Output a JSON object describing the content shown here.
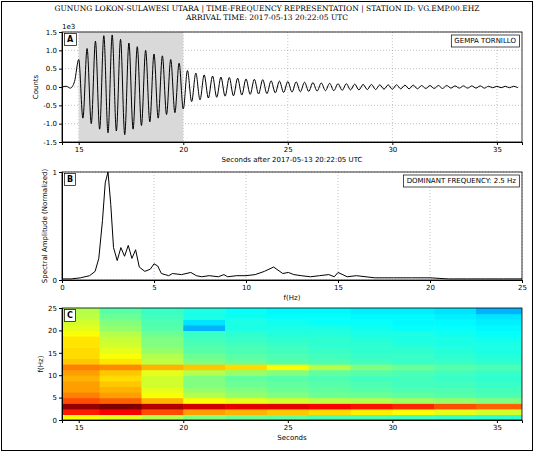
{
  "title": "GUNUNG LOKON-SULAWESI UTARA | TIME-FREQUENCY REPRESENTATION | STATION ID: VG.EMP.00.EHZ",
  "subtitle": "ARRIVAL TIME: 2017-05-13 20:22:05 UTC",
  "chart_data": [
    {
      "type": "line",
      "panel": "A",
      "annotation": "GEMPA TORNILLO",
      "x_label": "Seconds after 2017-05-13 20:22:05 UTC",
      "y_label": "Counts",
      "y_scale_label": "1e3",
      "x": [
        14.2,
        14.4,
        14.6,
        14.8,
        15.0,
        15.2,
        15.4,
        15.6,
        15.8,
        16.0,
        16.2,
        16.4,
        16.6,
        16.8,
        17.0,
        17.2,
        17.4,
        17.6,
        17.8,
        18.0,
        18.2,
        18.4,
        18.6,
        18.8,
        19.0,
        19.2,
        19.4,
        19.6,
        19.8,
        20.0,
        20.2,
        20.4,
        20.6,
        20.8,
        21.0,
        21.2,
        21.4,
        21.6,
        21.8,
        22.0,
        22.2,
        22.4,
        22.6,
        22.8,
        23.0,
        23.2,
        23.4,
        23.6,
        23.8,
        24.0,
        24.2,
        24.4,
        24.6,
        24.8,
        25.0,
        25.2,
        25.4,
        25.6,
        25.8,
        26.0,
        26.2,
        26.4,
        26.6,
        26.8,
        27.0,
        27.2,
        27.4,
        27.6,
        27.8,
        28.0,
        28.2,
        28.4,
        28.6,
        28.8,
        29.0,
        29.2,
        29.4,
        29.6,
        29.8,
        30.0,
        30.2,
        30.4,
        30.6,
        30.8,
        31.0,
        31.2,
        31.4,
        31.6,
        31.8,
        32.0,
        32.2,
        32.4,
        32.6,
        32.8,
        33.0,
        33.2,
        33.4,
        33.6,
        33.8,
        34.0,
        34.2,
        34.4,
        34.6,
        34.8,
        35.0,
        35.2,
        35.4,
        35.6,
        35.8,
        36.0
      ],
      "series": [
        {
          "color": "#000000",
          "values": [
            0,
            0.02,
            -0.03,
            0.15,
            0.75,
            -0.85,
            1.05,
            -1.0,
            1.25,
            -1.15,
            1.4,
            -1.25,
            1.42,
            -1.2,
            1.3,
            -1.3,
            1.2,
            -1.15,
            1.1,
            -1.05,
            1.0,
            -0.95,
            0.9,
            -0.85,
            0.85,
            -0.75,
            0.75,
            -0.7,
            0.65,
            -0.6,
            0.45,
            -0.4,
            0.38,
            -0.35,
            0.33,
            -0.3,
            0.3,
            -0.28,
            0.27,
            -0.25,
            0.26,
            -0.24,
            0.24,
            -0.22,
            0.22,
            -0.2,
            0.21,
            -0.19,
            0.2,
            -0.18,
            0.17,
            -0.16,
            0.16,
            -0.15,
            0.15,
            -0.14,
            0.14,
            -0.13,
            0.13,
            -0.12,
            0.12,
            -0.11,
            0.11,
            -0.1,
            0.1,
            -0.1,
            0.09,
            -0.09,
            0.09,
            -0.08,
            0.08,
            -0.08,
            0.07,
            -0.07,
            0.07,
            -0.07,
            0.06,
            -0.06,
            0.06,
            -0.06,
            0.06,
            -0.05,
            0.05,
            -0.05,
            0.05,
            -0.05,
            0.04,
            -0.04,
            0.04,
            -0.04,
            0.04,
            -0.04,
            0.04,
            -0.03,
            0.03,
            -0.03,
            0.03,
            -0.03,
            0.03,
            -0.03,
            0.03,
            -0.03,
            0.02,
            -0.02,
            0.02,
            -0.02,
            0.02,
            -0.02,
            0.02,
            -0.02
          ]
        }
      ],
      "shaded_span": [
        15,
        20
      ],
      "xlim": [
        14.2,
        36.2
      ],
      "ylim": [
        -1.5,
        1.5
      ],
      "xticks": [
        15,
        20,
        25,
        30,
        35
      ],
      "yticks": [
        -1.5,
        {
          "value": -1.0,
          "label": "-1.0"
        },
        -0.5,
        {
          "value": 0,
          "label": "0.0"
        },
        0.5,
        {
          "value": 1.0,
          "label": "1.0"
        },
        1.5
      ],
      "grid": true
    },
    {
      "type": "line",
      "panel": "B",
      "annotation": "DOMINANT FREQUENCY: 2.5 Hz",
      "x_label": "f(Hz)",
      "y_label": "Spectral Amplitude (Normalized)",
      "x": [
        0,
        0.5,
        1.0,
        1.5,
        1.8,
        2.0,
        2.2,
        2.35,
        2.5,
        2.65,
        2.8,
        3.0,
        3.2,
        3.4,
        3.6,
        3.8,
        4.0,
        4.2,
        4.5,
        4.8,
        5.0,
        5.2,
        5.4,
        5.6,
        5.8,
        6.0,
        6.5,
        7.0,
        7.3,
        7.6,
        8.0,
        8.5,
        8.8,
        9.0,
        9.5,
        10.0,
        10.5,
        11.0,
        11.5,
        12.0,
        12.3,
        12.6,
        13.0,
        13.5,
        14.0,
        14.5,
        14.8,
        15.0,
        15.5,
        16.0,
        17.0,
        18.0,
        19.0,
        20.0,
        21.0,
        22.0,
        23.0,
        24.0,
        25.0
      ],
      "series": [
        {
          "color": "#000000",
          "values": [
            0.01,
            0.01,
            0.02,
            0.04,
            0.08,
            0.2,
            0.55,
            0.9,
            1.0,
            0.7,
            0.3,
            0.18,
            0.3,
            0.22,
            0.32,
            0.2,
            0.28,
            0.12,
            0.08,
            0.1,
            0.15,
            0.13,
            0.06,
            0.05,
            0.04,
            0.06,
            0.05,
            0.07,
            0.04,
            0.03,
            0.04,
            0.03,
            0.05,
            0.03,
            0.04,
            0.04,
            0.05,
            0.08,
            0.12,
            0.06,
            0.07,
            0.05,
            0.04,
            0.03,
            0.04,
            0.05,
            0.03,
            0.07,
            0.03,
            0.04,
            0.02,
            0.02,
            0.02,
            0.02,
            0.01,
            0.01,
            0.01,
            0.01,
            0.01
          ]
        }
      ],
      "xlim": [
        0,
        25
      ],
      "ylim": [
        0,
        1
      ],
      "xticks": [
        0,
        5,
        10,
        15,
        20,
        25
      ],
      "yticks": [
        0,
        1
      ],
      "grid": true
    },
    {
      "type": "heatmap",
      "panel": "C",
      "x_label": "Seconds",
      "y_label": "f(Hz)",
      "x_edges": [
        14.2,
        16,
        18,
        20,
        22,
        24,
        26,
        28,
        30,
        32,
        34,
        36.2
      ],
      "y_edges": [
        0,
        1.25,
        2.5,
        3.75,
        5,
        6.25,
        7.5,
        8.75,
        10,
        11.25,
        12.5,
        13.75,
        15,
        16.25,
        17.5,
        18.75,
        20,
        21.25,
        22.5,
        23.75,
        25
      ],
      "cells": [
        [
          0.62,
          0.6,
          0.55,
          0.5,
          0.48,
          0.47,
          0.45,
          0.45,
          0.44,
          0.43,
          0.42
        ],
        [
          0.85,
          0.88,
          0.8,
          0.72,
          0.7,
          0.68,
          0.66,
          0.64,
          0.62,
          0.6,
          0.58
        ],
        [
          0.98,
          1.0,
          0.95,
          0.92,
          0.9,
          0.9,
          0.88,
          0.86,
          0.84,
          0.8,
          0.78
        ],
        [
          0.8,
          0.78,
          0.7,
          0.62,
          0.6,
          0.58,
          0.56,
          0.55,
          0.53,
          0.52,
          0.5
        ],
        [
          0.75,
          0.72,
          0.62,
          0.55,
          0.52,
          0.5,
          0.48,
          0.48,
          0.47,
          0.46,
          0.45
        ],
        [
          0.72,
          0.7,
          0.6,
          0.52,
          0.5,
          0.48,
          0.47,
          0.46,
          0.45,
          0.45,
          0.44
        ],
        [
          0.72,
          0.68,
          0.58,
          0.5,
          0.48,
          0.47,
          0.46,
          0.45,
          0.44,
          0.44,
          0.43
        ],
        [
          0.7,
          0.66,
          0.58,
          0.5,
          0.47,
          0.46,
          0.45,
          0.44,
          0.44,
          0.43,
          0.42
        ],
        [
          0.72,
          0.68,
          0.6,
          0.55,
          0.52,
          0.5,
          0.47,
          0.46,
          0.45,
          0.44,
          0.43
        ],
        [
          0.75,
          0.74,
          0.7,
          0.68,
          0.66,
          0.62,
          0.55,
          0.5,
          0.48,
          0.46,
          0.45
        ],
        [
          0.68,
          0.65,
          0.56,
          0.5,
          0.48,
          0.46,
          0.45,
          0.44,
          0.43,
          0.43,
          0.42
        ],
        [
          0.66,
          0.62,
          0.55,
          0.48,
          0.46,
          0.45,
          0.44,
          0.43,
          0.43,
          0.42,
          0.41
        ],
        [
          0.66,
          0.6,
          0.52,
          0.46,
          0.45,
          0.44,
          0.43,
          0.42,
          0.42,
          0.41,
          0.4
        ],
        [
          0.65,
          0.58,
          0.5,
          0.45,
          0.44,
          0.43,
          0.42,
          0.42,
          0.41,
          0.4,
          0.4
        ],
        [
          0.65,
          0.57,
          0.5,
          0.44,
          0.43,
          0.42,
          0.42,
          0.41,
          0.4,
          0.4,
          0.39
        ],
        [
          0.62,
          0.55,
          0.48,
          0.43,
          0.42,
          0.41,
          0.41,
          0.4,
          0.4,
          0.39,
          0.38
        ],
        [
          0.6,
          0.52,
          0.46,
          0.3,
          0.4,
          0.4,
          0.4,
          0.39,
          0.38,
          0.38,
          0.37
        ],
        [
          0.58,
          0.5,
          0.45,
          0.35,
          0.4,
          0.39,
          0.38,
          0.38,
          0.37,
          0.37,
          0.36
        ],
        [
          0.56,
          0.48,
          0.44,
          0.4,
          0.39,
          0.38,
          0.38,
          0.37,
          0.37,
          0.36,
          0.35
        ],
        [
          0.55,
          0.46,
          0.43,
          0.4,
          0.38,
          0.37,
          0.37,
          0.36,
          0.36,
          0.35,
          0.3
        ]
      ],
      "zlim": [
        0,
        1
      ],
      "xlim": [
        14.2,
        36.2
      ],
      "ylim": [
        0,
        25
      ],
      "xticks": [
        15,
        20,
        25,
        30,
        35
      ],
      "yticks": [
        0,
        5,
        10,
        15,
        20,
        25
      ]
    }
  ]
}
